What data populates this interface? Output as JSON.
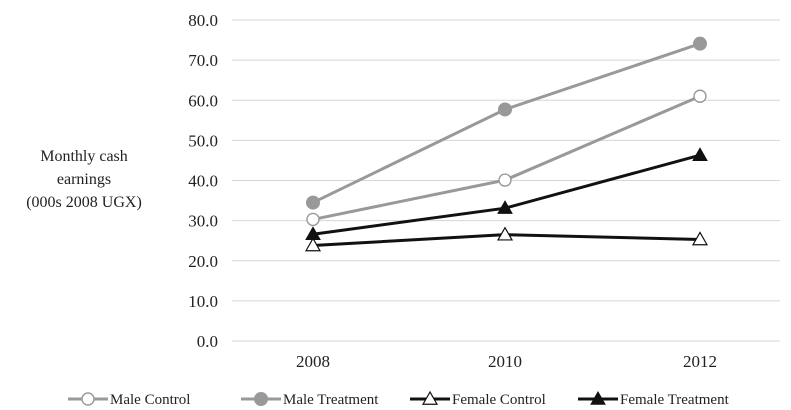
{
  "chart_data": {
    "type": "line",
    "title": "",
    "xlabel": "",
    "ylabel": [
      "Monthly cash",
      "earnings",
      "(000s 2008 UGX)"
    ],
    "categories": [
      "2008",
      "2010",
      "2012"
    ],
    "ylim": [
      0,
      80
    ],
    "yticks": [
      "0.0",
      "10.0",
      "20.0",
      "30.0",
      "40.0",
      "50.0",
      "60.0",
      "70.0",
      "80.0"
    ],
    "grid": true,
    "legend_position": "bottom",
    "series": [
      {
        "name": "Male Control",
        "values": [
          30.3,
          40.1,
          61.0
        ],
        "color": "#999999",
        "marker": "open-circle"
      },
      {
        "name": "Male Treatment",
        "values": [
          34.5,
          57.7,
          74.1
        ],
        "color": "#999999",
        "marker": "filled-circle"
      },
      {
        "name": "Female Control",
        "values": [
          23.8,
          26.5,
          25.3
        ],
        "color": "#111111",
        "marker": "open-triangle"
      },
      {
        "name": "Female Treatment",
        "values": [
          26.6,
          33.1,
          46.3
        ],
        "color": "#111111",
        "marker": "filled-triangle"
      }
    ]
  }
}
